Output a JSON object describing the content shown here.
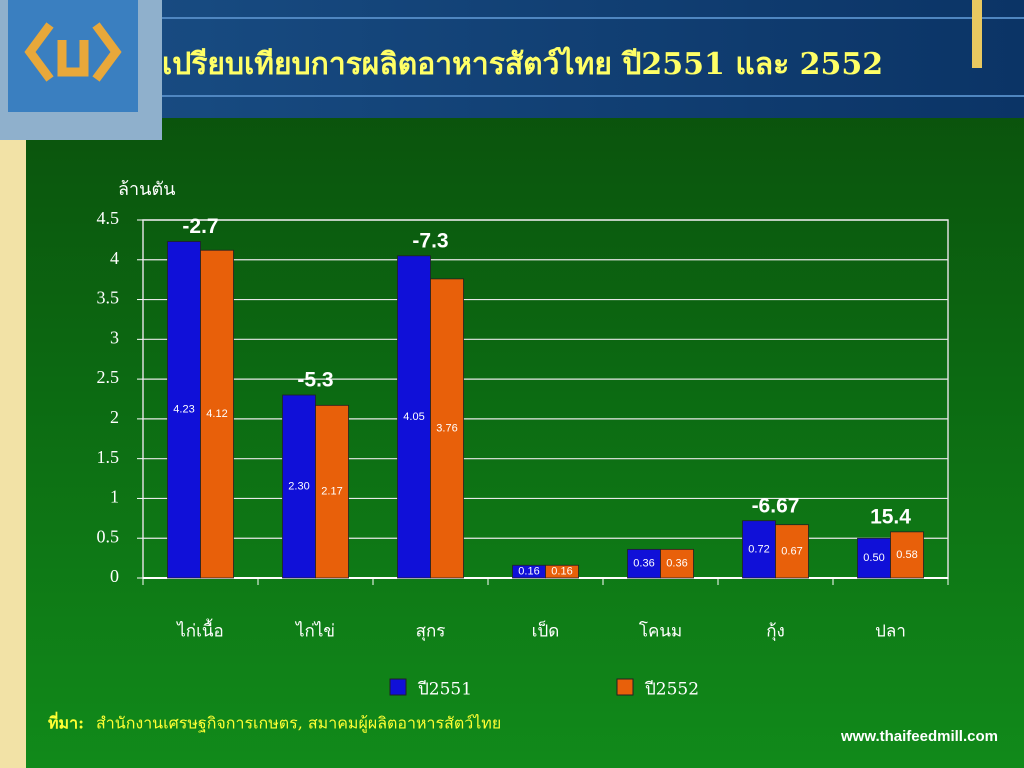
{
  "chart_data": {
    "type": "bar",
    "title": "เปรียบเทียบการผลิตอาหารสัตว์ไทย ปี2551 และ 2552",
    "y_label": "ล้านตัน",
    "categories": [
      "ไก่เนื้อ",
      "ไก่ไข่",
      "สุกร",
      "เป็ด",
      "โคนม",
      "กุ้ง",
      "ปลา"
    ],
    "series": [
      {
        "name": "ปี2551",
        "color": "#1010d8",
        "values": [
          4.23,
          2.3,
          4.05,
          0.16,
          0.36,
          0.72,
          0.5
        ],
        "value_labels": [
          "4.23",
          "2.30",
          "4.05",
          "0.16",
          "0.36",
          "0.72",
          "0.50"
        ]
      },
      {
        "name": "ปี2552",
        "color": "#e8600a",
        "values": [
          4.12,
          2.17,
          3.76,
          0.16,
          0.36,
          0.67,
          0.58
        ],
        "value_labels": [
          "4.12",
          "2.17",
          "3.76",
          "0.16",
          "0.36",
          "0.67",
          "0.58"
        ]
      }
    ],
    "change_labels": [
      -2.7,
      -5.3,
      -7.3,
      null,
      null,
      -6.67,
      15.4
    ],
    "ylim": [
      0,
      4.5
    ],
    "yticks": [
      0,
      0.5,
      1,
      1.5,
      2,
      2.5,
      3,
      3.5,
      4,
      4.5
    ],
    "grid": true,
    "source_label": "ที่มา:",
    "source": "สำนักงานเศรษฐกิจการเกษตร, สมาคมผู้ผลิตอาหารสัตว์ไทย",
    "website": "www.thaifeedmill.com"
  }
}
